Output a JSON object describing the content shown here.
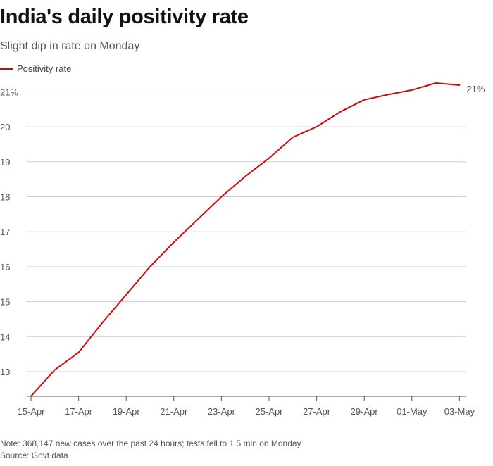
{
  "title": "India's daily positivity rate",
  "subtitle": "Slight dip in rate on Monday",
  "legend": {
    "label": "Positivity rate",
    "color": "#cc0a0a"
  },
  "note": "Note: 368,147 new cases over the past 24 hours; tests fell to 1.5 mln on Monday",
  "source": "Source: Govt data",
  "end_label": "21%",
  "chart_data": {
    "type": "line",
    "title": "India's daily positivity rate",
    "subtitle": "Slight dip in rate on Monday",
    "xlabel": "",
    "ylabel": "",
    "x": [
      "15-Apr",
      "16-Apr",
      "17-Apr",
      "18-Apr",
      "19-Apr",
      "20-Apr",
      "21-Apr",
      "22-Apr",
      "23-Apr",
      "24-Apr",
      "25-Apr",
      "26-Apr",
      "27-Apr",
      "28-Apr",
      "29-Apr",
      "30-Apr",
      "01-May",
      "02-May",
      "03-May"
    ],
    "x_tick_labels": [
      "15-Apr",
      "17-Apr",
      "19-Apr",
      "21-Apr",
      "23-Apr",
      "25-Apr",
      "27-Apr",
      "29-Apr",
      "01-May",
      "03-May"
    ],
    "series": [
      {
        "name": "Positivity rate",
        "values": [
          12.3,
          13.05,
          13.55,
          14.4,
          15.2,
          16.0,
          16.7,
          17.35,
          18.0,
          18.58,
          19.1,
          19.7,
          20.0,
          20.43,
          20.77,
          20.92,
          21.05,
          21.25,
          21.19
        ]
      }
    ],
    "y_ticks": [
      13,
      14,
      15,
      16,
      17,
      18,
      19,
      20,
      21
    ],
    "y_tick_labels": [
      "13",
      "14",
      "15",
      "16",
      "17",
      "18",
      "19",
      "20",
      "21%"
    ],
    "ylim": [
      12.3,
      21.5
    ],
    "grid": true,
    "legend_position": "top-left"
  }
}
